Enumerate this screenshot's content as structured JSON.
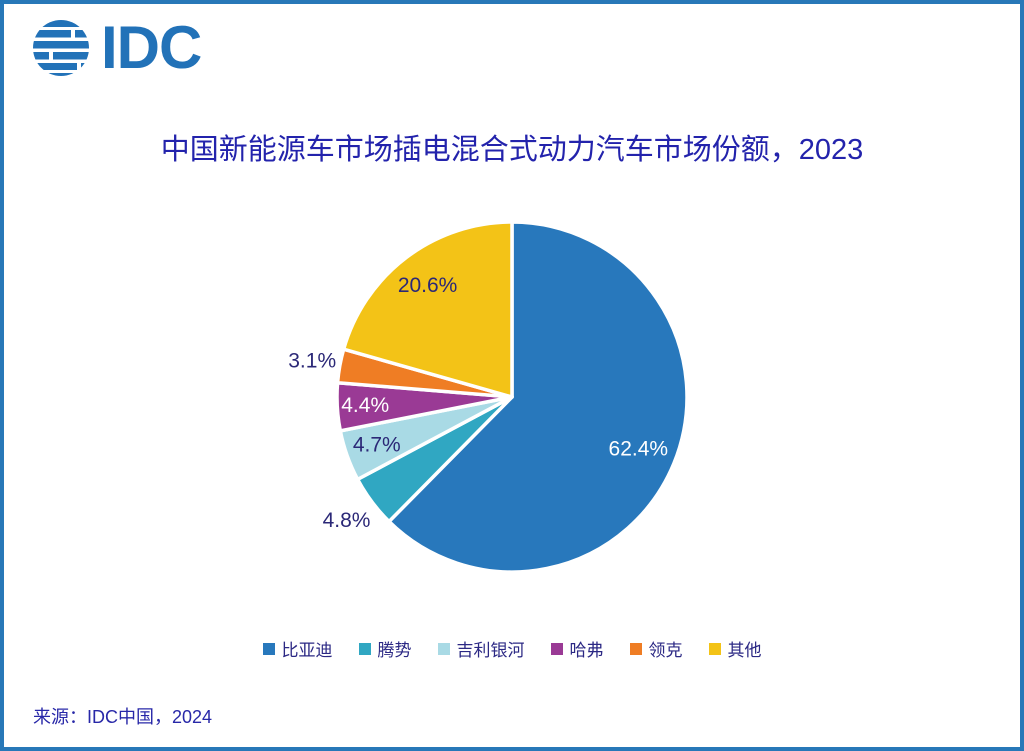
{
  "colors": {
    "frame_border": "#2878B8",
    "logo_blue": "#2272B8",
    "title_blue": "#2323AC",
    "navy_text": "#2B2877",
    "legend_text": "#2B2884",
    "source_blue": "#2828A8",
    "background": "#FFFFFF"
  },
  "logo": {
    "text": "IDC"
  },
  "title": {
    "text": "中国新能源车市场插电混合式动力汽车市场份额，2023"
  },
  "source": {
    "text": "来源：IDC中国，2024"
  },
  "chart_data": {
    "type": "pie",
    "title": "中国新能源车市场插电混合式动力汽车市场份额，2023",
    "start_angle_deg": 0,
    "direction": "clockwise",
    "slice_separator_color": "#FFFFFF",
    "legend_position": "bottom",
    "categories": [
      "比亚迪",
      "腾势",
      "吉利银河",
      "哈弗",
      "领克",
      "其他"
    ],
    "values": [
      62.4,
      4.8,
      4.7,
      4.4,
      3.1,
      20.6
    ],
    "slices": [
      {
        "name": "比亚迪",
        "value": 62.4,
        "label": "62.4%",
        "color": "#2878BC",
        "label_pos": "inside",
        "label_r": 0.78,
        "label_color": "#FFFFFF"
      },
      {
        "name": "腾势",
        "value": 4.8,
        "label": "4.8%",
        "color": "#30A7C2",
        "label_pos": "outside",
        "label_r": 1.18,
        "label_color": "#2B2877"
      },
      {
        "name": "吉利银河",
        "value": 4.7,
        "label": "4.7%",
        "color": "#A9DAE5",
        "label_pos": "inside",
        "label_r": 0.82,
        "label_color": "#2B2877"
      },
      {
        "name": "哈弗",
        "value": 4.4,
        "label": "4.4%",
        "color": "#9A3A95",
        "label_pos": "inside",
        "label_r": 0.84,
        "label_color": "#FFFFFF"
      },
      {
        "name": "领克",
        "value": 3.1,
        "label": "3.1%",
        "color": "#EF7D24",
        "label_pos": "outside",
        "label_r": 1.16,
        "label_color": "#2B2877"
      },
      {
        "name": "其他",
        "value": 20.6,
        "label": "20.6%",
        "color": "#F3C317",
        "label_pos": "inside",
        "label_r": 0.8,
        "label_color": "#2B2877"
      }
    ]
  }
}
